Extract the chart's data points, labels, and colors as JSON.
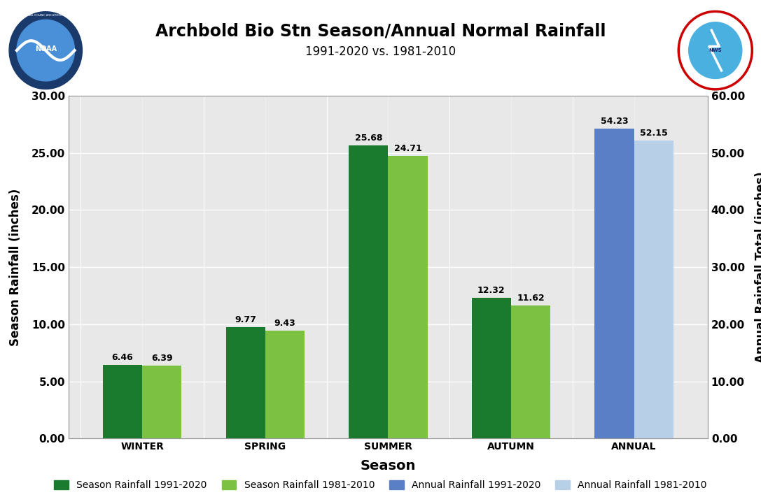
{
  "title": "Archbold Bio Stn Season/Annual Normal Rainfall",
  "subtitle": "1991-2020 vs. 1981-2010",
  "xlabel": "Season",
  "ylabel_left": "Season Rainfall (inches)",
  "ylabel_right": "Annual Rainfall Total (inches)",
  "seasons": [
    "WINTER",
    "SPRING",
    "SUMMER",
    "AUTUMN"
  ],
  "annual_label": "ANNUAL",
  "season_1991_2020": [
    6.46,
    9.77,
    25.68,
    12.32
  ],
  "season_1981_2010": [
    6.39,
    9.43,
    24.71,
    11.62
  ],
  "annual_1991_2020": 54.23,
  "annual_1981_2010": 52.15,
  "color_dark_green": "#1a7a2e",
  "color_light_green": "#7dc142",
  "color_blue": "#5b7fc7",
  "color_light_blue": "#b8cfe8",
  "ylim_left": [
    0,
    30
  ],
  "ylim_right": [
    0,
    60
  ],
  "yticks_left": [
    0.0,
    5.0,
    10.0,
    15.0,
    20.0,
    25.0,
    30.0
  ],
  "yticks_right": [
    0.0,
    10.0,
    20.0,
    30.0,
    40.0,
    50.0,
    60.0
  ],
  "background_color": "#e8e8e8",
  "legend_labels": [
    "Season Rainfall 1991-2020",
    "Season Rainfall 1981-2010",
    "Annual Rainfall 1991-2020",
    "Annual Rainfall 1981-2010"
  ],
  "bar_width": 0.32,
  "group_positions": [
    1,
    2,
    3,
    4,
    5
  ]
}
